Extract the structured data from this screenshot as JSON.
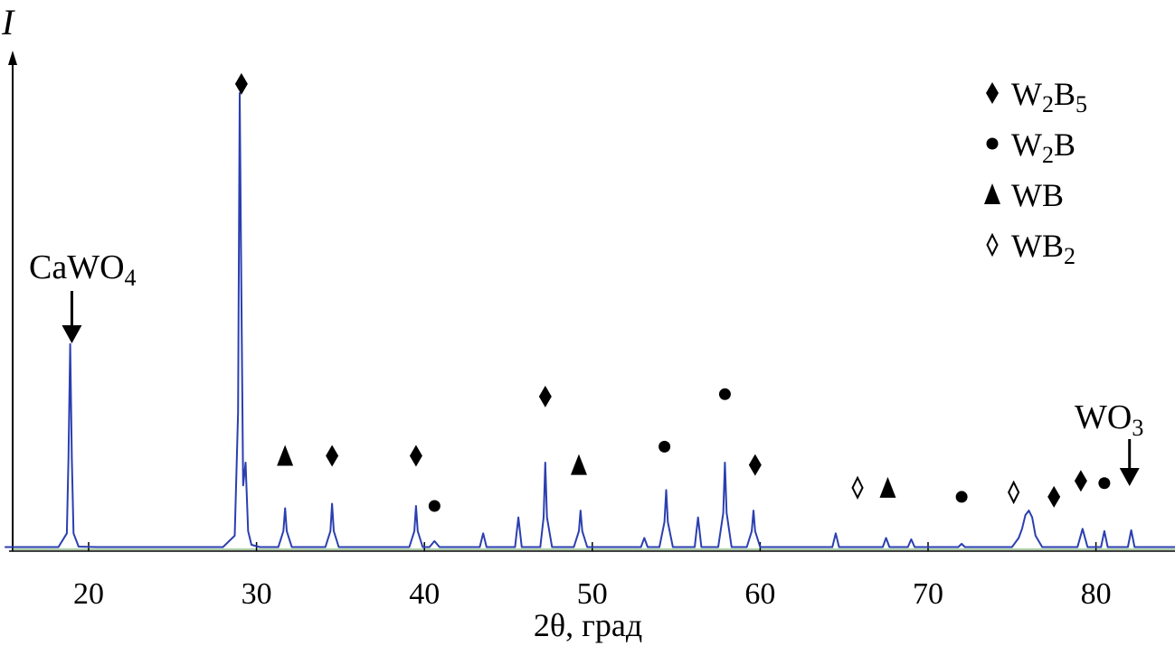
{
  "chart_data": {
    "type": "line",
    "title": "",
    "xlabel": "2θ, град",
    "ylabel": "I",
    "xlim": [
      15,
      85
    ],
    "ylim": [
      0,
      100
    ],
    "xticks": [
      20,
      30,
      40,
      50,
      60,
      70,
      80
    ],
    "grid": false,
    "legend_position": "top-right",
    "series": [
      {
        "color": "#2b3fb0",
        "x": [
          15,
          18.2,
          18.7,
          18.8,
          18.9,
          19.0,
          19.1,
          19.4,
          20.5,
          28.0,
          28.7,
          28.9,
          29.0,
          29.1,
          29.2,
          29.35,
          29.5,
          29.7,
          30.2,
          31.3,
          31.6,
          31.7,
          31.8,
          32.1,
          34.1,
          34.4,
          34.5,
          34.6,
          34.9,
          39.1,
          39.4,
          39.5,
          39.6,
          39.9,
          40.3,
          40.6,
          40.9,
          43.3,
          43.5,
          43.7,
          45.4,
          45.6,
          45.8,
          46.9,
          47.1,
          47.2,
          47.3,
          47.6,
          48.9,
          49.2,
          49.3,
          49.4,
          49.7,
          52.9,
          53.1,
          53.3,
          54.0,
          54.3,
          54.4,
          54.5,
          54.8,
          56.1,
          56.3,
          56.5,
          57.5,
          57.8,
          57.9,
          58.0,
          58.3,
          59.2,
          59.5,
          59.6,
          59.7,
          60.0,
          64.3,
          64.5,
          64.7,
          67.3,
          67.5,
          67.7,
          68.8,
          69.0,
          69.2,
          71.8,
          72.0,
          72.2,
          75.0,
          75.2,
          75.4,
          75.6,
          75.8,
          76.0,
          76.2,
          76.4,
          76.8,
          78.9,
          79.2,
          79.5,
          80.3,
          80.5,
          80.7,
          81.9,
          82.1,
          82.3,
          85
        ],
        "values": [
          0.5,
          0.5,
          3.5,
          20,
          45,
          20,
          3.5,
          0.6,
          0.5,
          0.5,
          3,
          30,
          100,
          55,
          14,
          19,
          4,
          1,
          0.5,
          0.5,
          4,
          9,
          4,
          0.5,
          0.5,
          4,
          10,
          4,
          0.5,
          0.5,
          4,
          9.5,
          4,
          0.5,
          0.5,
          1.8,
          0.5,
          0.5,
          3.5,
          0.5,
          0.5,
          7,
          0.5,
          0.5,
          7,
          19,
          7,
          0.5,
          0.5,
          4,
          8.5,
          4,
          0.5,
          0.5,
          2.5,
          0.5,
          0.5,
          6,
          13,
          6,
          0.5,
          0.5,
          7,
          0.5,
          0.5,
          8,
          19,
          8,
          0.5,
          0.5,
          4,
          8.5,
          4,
          0.5,
          0.5,
          3.5,
          0.5,
          0.5,
          2.5,
          0.5,
          0.5,
          2.2,
          0.5,
          0.5,
          1.2,
          0.5,
          0.5,
          1.5,
          2.5,
          4.5,
          7.5,
          8.5,
          7,
          3,
          0.5,
          0.5,
          4.5,
          0.5,
          0.5,
          4,
          0.5,
          0.5,
          4.2,
          0.5,
          0.5
        ]
      }
    ],
    "annotations": [
      {
        "text": "CaWO",
        "sub": "4",
        "x": 19.0,
        "arrow": true
      },
      {
        "text": "WO",
        "sub": "3",
        "x": 82.0,
        "arrow": true
      }
    ],
    "peak_markers": [
      {
        "phase": "W2B5",
        "x": 29.1,
        "y": 102
      },
      {
        "phase": "WB",
        "x": 31.7,
        "y": 20.5
      },
      {
        "phase": "W2B5",
        "x": 34.5,
        "y": 20.5
      },
      {
        "phase": "W2B5",
        "x": 39.5,
        "y": 20.5
      },
      {
        "phase": "W2B",
        "x": 40.6,
        "y": 9.5
      },
      {
        "phase": "W2B5",
        "x": 47.2,
        "y": 33.5
      },
      {
        "phase": "WB",
        "x": 49.2,
        "y": 18.5
      },
      {
        "phase": "W2B",
        "x": 54.3,
        "y": 22.5
      },
      {
        "phase": "W2B",
        "x": 57.9,
        "y": 34
      },
      {
        "phase": "W2B5",
        "x": 59.7,
        "y": 18.5
      },
      {
        "phase": "WB2",
        "x": 65.8,
        "y": 13.5
      },
      {
        "phase": "WB",
        "x": 67.6,
        "y": 13.5
      },
      {
        "phase": "W2B",
        "x": 72.0,
        "y": 11.5
      },
      {
        "phase": "WB2",
        "x": 75.1,
        "y": 12.5
      },
      {
        "phase": "W2B5",
        "x": 77.5,
        "y": 11.5
      },
      {
        "phase": "W2B5",
        "x": 79.1,
        "y": 15
      },
      {
        "phase": "W2B",
        "x": 80.5,
        "y": 14.5
      }
    ],
    "legend": [
      {
        "key": "W2B5",
        "marker": "diamond-filled",
        "label": "W",
        "sub1": "2",
        "label2": "B",
        "sub2": "5"
      },
      {
        "key": "W2B",
        "marker": "circle-filled",
        "label": "W",
        "sub1": "2",
        "label2": "B",
        "sub2": ""
      },
      {
        "key": "WB",
        "marker": "triangle-filled",
        "label": "WB",
        "sub1": "",
        "label2": "",
        "sub2": ""
      },
      {
        "key": "WB2",
        "marker": "diamond-open",
        "label": "WB",
        "sub1": "2",
        "label2": "",
        "sub2": ""
      }
    ]
  }
}
